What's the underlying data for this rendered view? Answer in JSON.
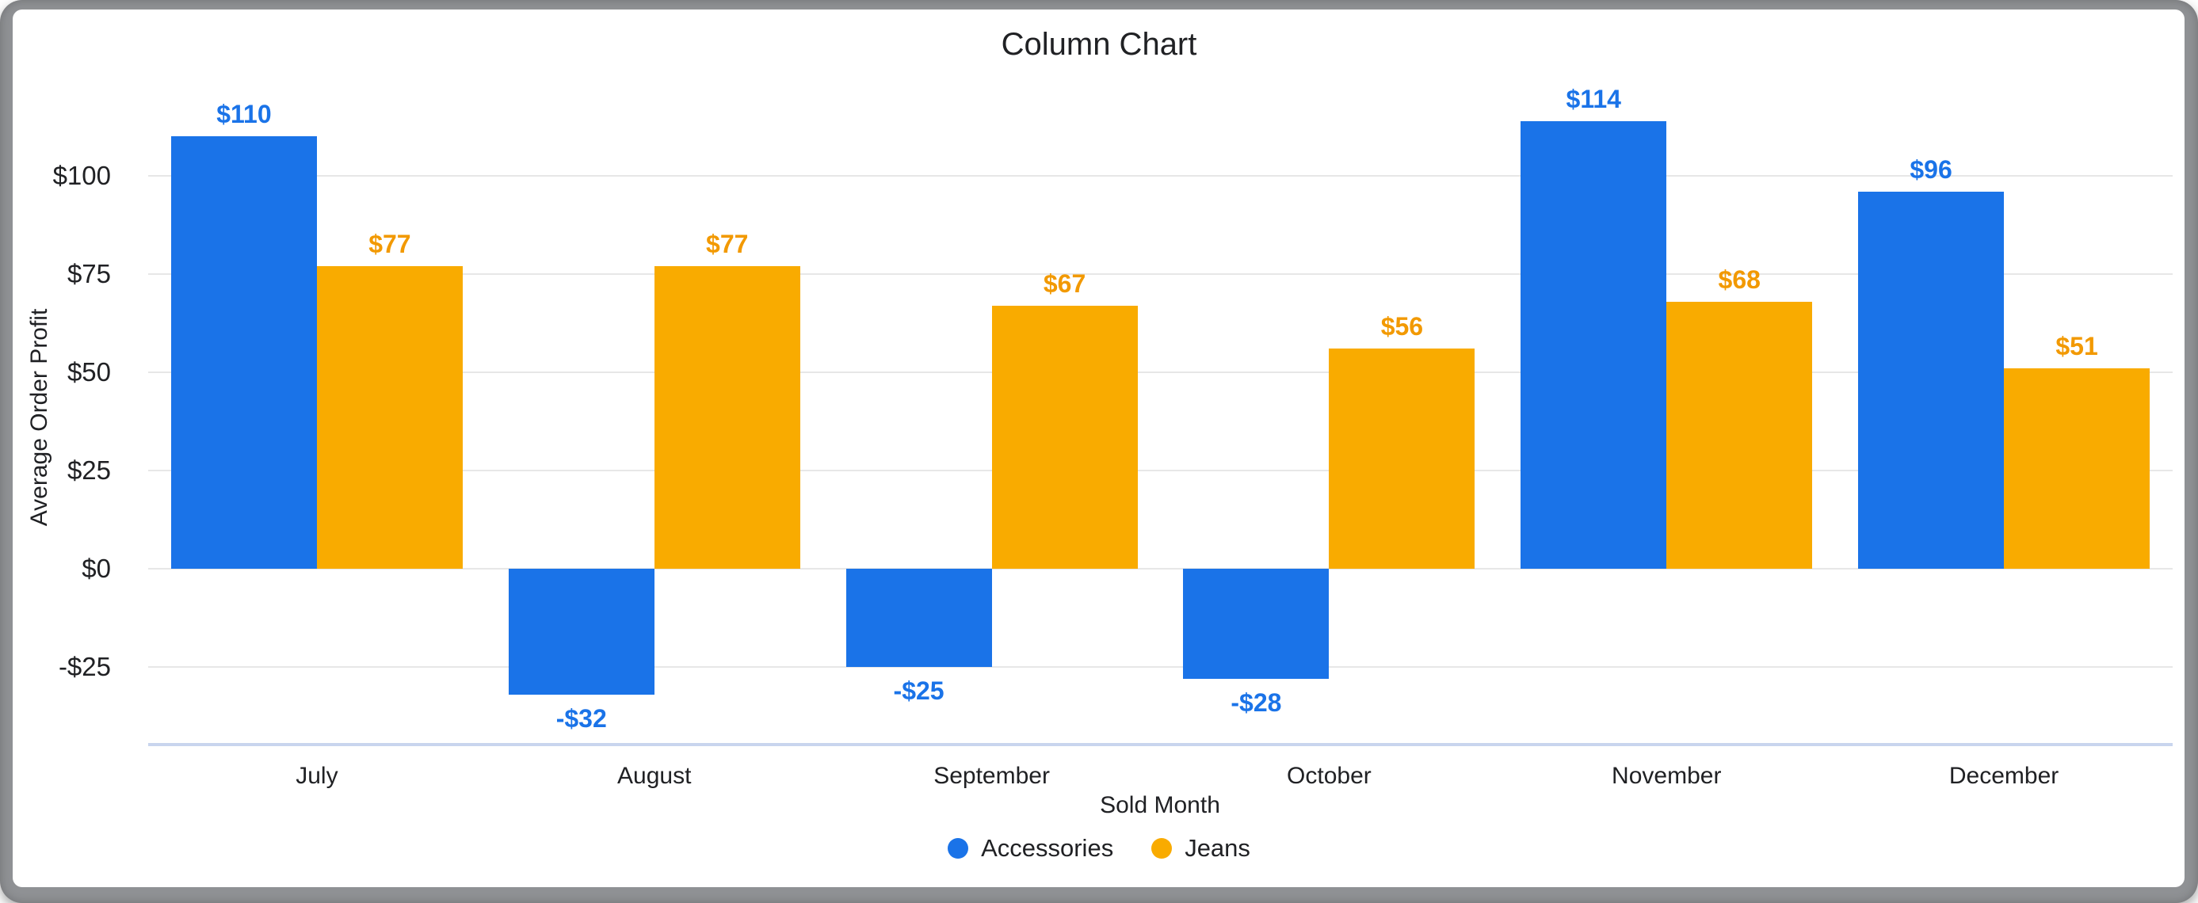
{
  "window": {
    "frame_color": "#8f9194",
    "card_color": "#ffffff"
  },
  "chart_data": {
    "type": "bar",
    "title": "Column Chart",
    "xlabel": "Sold Month",
    "ylabel": "Average Order Profit",
    "categories": [
      "July",
      "August",
      "September",
      "October",
      "November",
      "December"
    ],
    "series": [
      {
        "name": "Accessories",
        "color": "#1a73e8",
        "label_color": "#1a73e8",
        "values": [
          110,
          -32,
          -25,
          -28,
          114,
          96
        ],
        "labels": [
          "$110",
          "-$32",
          "-$25",
          "-$28",
          "$114",
          "$96"
        ]
      },
      {
        "name": "Jeans",
        "color": "#f9ab00",
        "label_color": "#f29900",
        "values": [
          77,
          77,
          67,
          56,
          68,
          51
        ],
        "labels": [
          "$77",
          "$77",
          "$67",
          "$56",
          "$68",
          "$51"
        ]
      }
    ],
    "y_ticks": [
      {
        "value": 100,
        "label": "$100"
      },
      {
        "value": 75,
        "label": "$75"
      },
      {
        "value": 50,
        "label": "$50"
      },
      {
        "value": 25,
        "label": "$25"
      },
      {
        "value": 0,
        "label": "$0"
      },
      {
        "value": -25,
        "label": "-$25"
      }
    ],
    "ylim": [
      -45,
      120
    ],
    "grid": "horizontal",
    "legend_position": "bottom",
    "grid_color": "#e7e7e7",
    "axis_line_color": "#c9d5ee",
    "text_color": "#202124"
  }
}
